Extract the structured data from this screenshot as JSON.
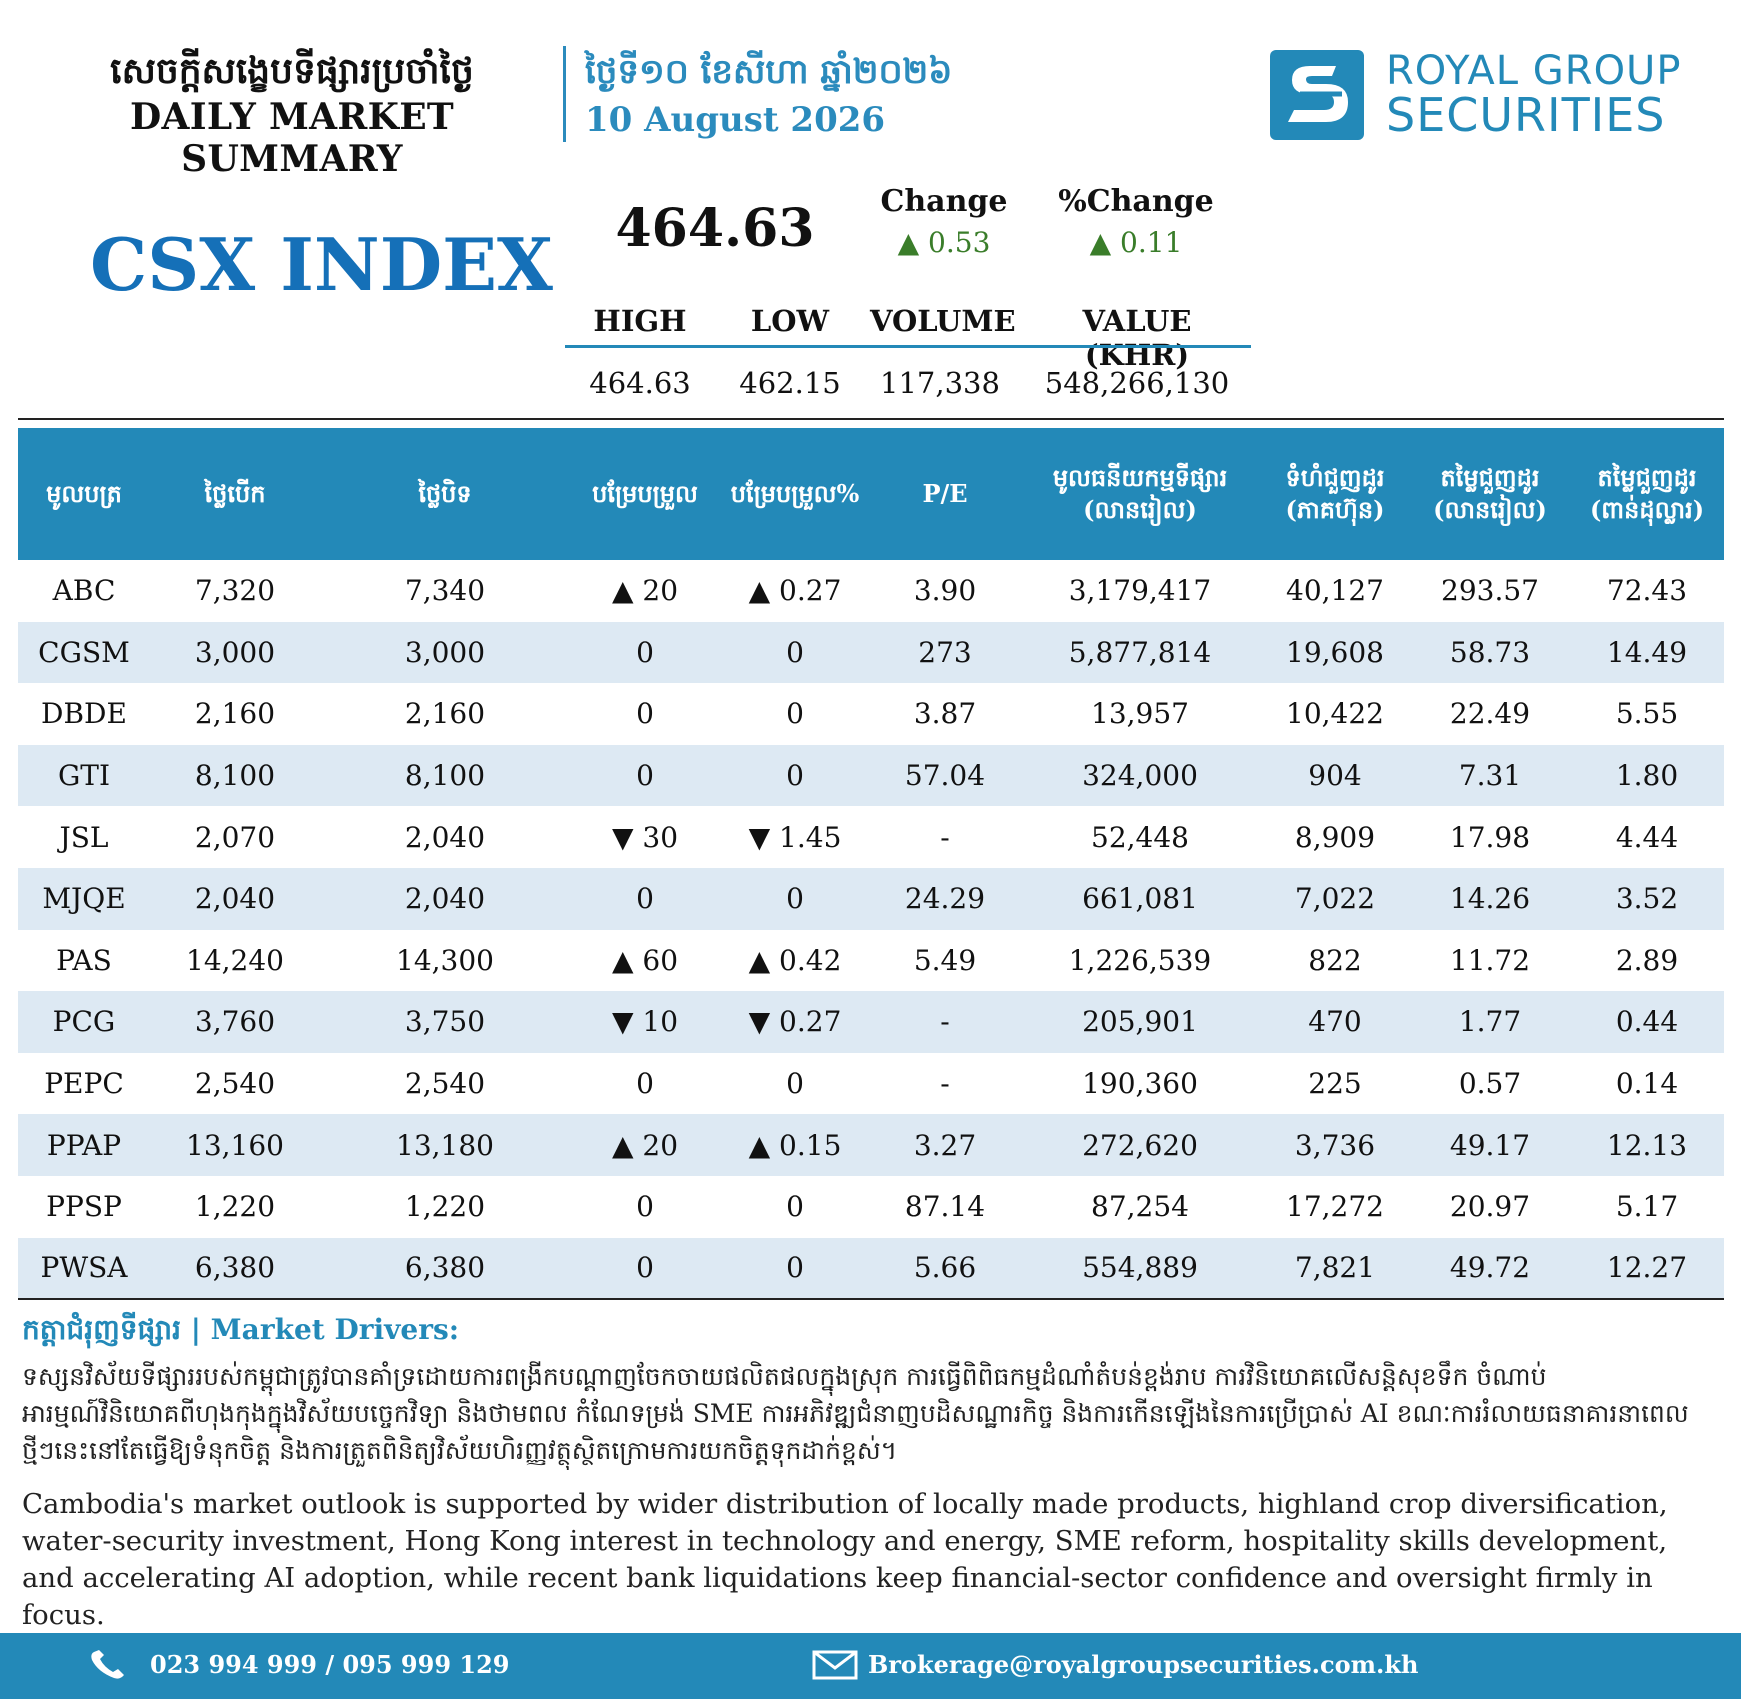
{
  "header": {
    "title_kh": "សេចក្តីសង្ខេបទីផ្សារប្រចាំថ្ងៃ",
    "title_en": "DAILY MARKET SUMMARY",
    "date_kh": "ថ្ងៃទី១០ ខែសីហា ឆ្នាំ២០២៦",
    "date_en": "10 August 2026"
  },
  "logo": {
    "line1": "ROYAL GROUP",
    "line2": "SECURITIES"
  },
  "index": {
    "name": "CSX INDEX",
    "value": "464.63",
    "change_label": "Change",
    "change_value": "▲ 0.53",
    "pct_change_label": "%Change",
    "pct_change_value": "▲ 0.11",
    "stats": {
      "high_label": "HIGH",
      "low_label": "LOW",
      "volume_label": "VOLUME",
      "value_label": "VALUE (KHR)",
      "high": "464.63",
      "low": "462.15",
      "volume": "117,338",
      "value": "548,266,130"
    }
  },
  "table": {
    "headers": {
      "symbol": "មូលបត្រ",
      "open": "ថ្លៃបើក",
      "close": "ថ្លៃបិទ",
      "change": "បម្រែបម្រួល",
      "pct_change": "បម្រែបម្រួល%",
      "pe": "P/E",
      "mcap_l1": "មូលធនីយកម្មទីផ្សារ",
      "mcap_l2": "(លានរៀល)",
      "vol_l1": "ទំហំជួញដូរ",
      "vol_l2": "(ភាគហ៊ុន)",
      "valkhr_l1": "តម្លៃជួញដូរ",
      "valkhr_l2": "(លានរៀល)",
      "valusd_l1": "តម្លៃជួញដូរ",
      "valusd_l2": "(ពាន់ដុល្លារ)"
    },
    "rows": [
      {
        "symbol": "ABC",
        "open": "7,320",
        "close": "7,340",
        "change": "▲ 20",
        "pct": "▲ 0.27",
        "dir": "up",
        "pe": "3.90",
        "mcap": "3,179,417",
        "volume": "40,127",
        "value_khr": "293.57",
        "value_usd": "72.43"
      },
      {
        "symbol": "CGSM",
        "open": "3,000",
        "close": "3,000",
        "change": "0",
        "pct": "0",
        "dir": "flat",
        "pe": "273",
        "mcap": "5,877,814",
        "volume": "19,608",
        "value_khr": "58.73",
        "value_usd": "14.49"
      },
      {
        "symbol": "DBDE",
        "open": "2,160",
        "close": "2,160",
        "change": "0",
        "pct": "0",
        "dir": "flat",
        "pe": "3.87",
        "mcap": "13,957",
        "volume": "10,422",
        "value_khr": "22.49",
        "value_usd": "5.55"
      },
      {
        "symbol": "GTI",
        "open": "8,100",
        "close": "8,100",
        "change": "0",
        "pct": "0",
        "dir": "flat",
        "pe": "57.04",
        "mcap": "324,000",
        "volume": "904",
        "value_khr": "7.31",
        "value_usd": "1.80"
      },
      {
        "symbol": "JSL",
        "open": "2,070",
        "close": "2,040",
        "change": "▼ 30",
        "pct": "▼ 1.45",
        "dir": "down",
        "pe": "-",
        "mcap": "52,448",
        "volume": "8,909",
        "value_khr": "17.98",
        "value_usd": "4.44"
      },
      {
        "symbol": "MJQE",
        "open": "2,040",
        "close": "2,040",
        "change": "0",
        "pct": "0",
        "dir": "flat",
        "pe": "24.29",
        "mcap": "661,081",
        "volume": "7,022",
        "value_khr": "14.26",
        "value_usd": "3.52"
      },
      {
        "symbol": "PAS",
        "open": "14,240",
        "close": "14,300",
        "change": "▲ 60",
        "pct": "▲ 0.42",
        "dir": "up",
        "pe": "5.49",
        "mcap": "1,226,539",
        "volume": "822",
        "value_khr": "11.72",
        "value_usd": "2.89"
      },
      {
        "symbol": "PCG",
        "open": "3,760",
        "close": "3,750",
        "change": "▼ 10",
        "pct": "▼ 0.27",
        "dir": "down",
        "pe": "-",
        "mcap": "205,901",
        "volume": "470",
        "value_khr": "1.77",
        "value_usd": "0.44"
      },
      {
        "symbol": "PEPC",
        "open": "2,540",
        "close": "2,540",
        "change": "0",
        "pct": "0",
        "dir": "flat",
        "pe": "-",
        "mcap": "190,360",
        "volume": "225",
        "value_khr": "0.57",
        "value_usd": "0.14"
      },
      {
        "symbol": "PPAP",
        "open": "13,160",
        "close": "13,180",
        "change": "▲ 20",
        "pct": "▲ 0.15",
        "dir": "up",
        "pe": "3.27",
        "mcap": "272,620",
        "volume": "3,736",
        "value_khr": "49.17",
        "value_usd": "12.13"
      },
      {
        "symbol": "PPSP",
        "open": "1,220",
        "close": "1,220",
        "change": "0",
        "pct": "0",
        "dir": "flat",
        "pe": "87.14",
        "mcap": "87,254",
        "volume": "17,272",
        "value_khr": "20.97",
        "value_usd": "5.17"
      },
      {
        "symbol": "PWSA",
        "open": "6,380",
        "close": "6,380",
        "change": "0",
        "pct": "0",
        "dir": "flat",
        "pe": "5.66",
        "mcap": "554,889",
        "volume": "7,821",
        "value_khr": "49.72",
        "value_usd": "12.27"
      }
    ]
  },
  "drivers": {
    "title": "កត្តាជំរុញទីផ្សារ | Market Drivers:",
    "text_kh": "ទស្សនវិស័យទីផ្សាររបស់កម្ពុជាត្រូវបានគាំទ្រដោយការពង្រីកបណ្តាញចែកចាយផលិតផលក្នុងស្រុក ការធ្វើពិពិធកម្មដំណាំតំបន់ខ្ពង់រាប ការវិនិយោគលើសន្តិសុខទឹក ចំណាប់អារម្មណ៍វិនិយោគពីហុងកុងក្នុងវិស័យបច្ចេកវិទ្យា និងថាមពល កំណែទម្រង់ SME ការអភិវឌ្ឍជំនាញបដិសណ្ឋារកិច្ច និងការកើនឡើងនៃការប្រើប្រាស់ AI ខណៈការរំលាយធនាគារនាពេលថ្មីៗនេះនៅតែធ្វើឱ្យទំនុកចិត្ត និងការត្រួតពិនិត្យវិស័យហិរញ្ញវត្ថុស្ថិតក្រោមការយកចិត្តទុកដាក់ខ្ពស់។",
    "text_en": "Cambodia's market outlook is supported by wider distribution of locally made products, highland crop diversification, water-security investment, Hong Kong interest in technology and energy, SME reform, hospitality skills development, and accelerating AI adoption, while recent bank liquidations keep financial-sector confidence and oversight firmly in focus."
  },
  "footer": {
    "phone": "023 994 999 / 095 999 129",
    "email": "Brokerage@royalgroupsecurities.com.kh"
  },
  "colors": {
    "brand_blue": "#2389b8",
    "index_blue": "#1570b8",
    "up_green": "#3a7d2a",
    "down_red": "#c01818",
    "row_alt": "#dde9f3"
  },
  "icons": {
    "phone": "phone-icon",
    "email": "envelope-icon",
    "logo": "royal-group-logo-icon"
  }
}
